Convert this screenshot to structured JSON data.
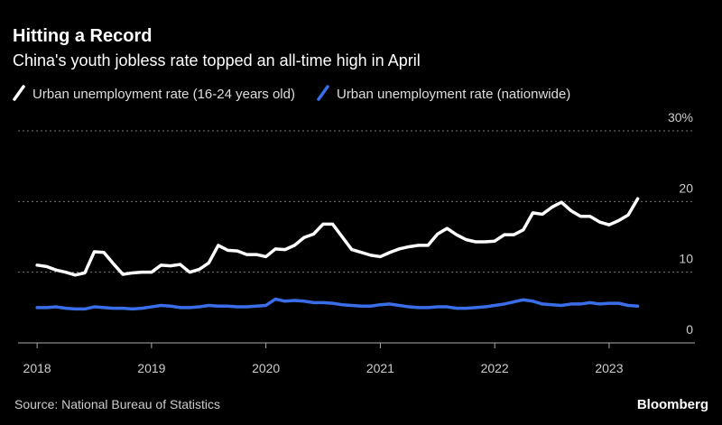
{
  "chart_data": {
    "type": "line",
    "title": "Hitting a Record",
    "subtitle": "China's youth jobless rate topped an all-time high in April",
    "x": [
      "2018-01",
      "2018-02",
      "2018-03",
      "2018-04",
      "2018-05",
      "2018-06",
      "2018-07",
      "2018-08",
      "2018-09",
      "2018-10",
      "2018-11",
      "2018-12",
      "2019-01",
      "2019-02",
      "2019-03",
      "2019-04",
      "2019-05",
      "2019-06",
      "2019-07",
      "2019-08",
      "2019-09",
      "2019-10",
      "2019-11",
      "2019-12",
      "2020-01",
      "2020-02",
      "2020-03",
      "2020-04",
      "2020-05",
      "2020-06",
      "2020-07",
      "2020-08",
      "2020-09",
      "2020-10",
      "2020-11",
      "2020-12",
      "2021-01",
      "2021-02",
      "2021-03",
      "2021-04",
      "2021-05",
      "2021-06",
      "2021-07",
      "2021-08",
      "2021-09",
      "2021-10",
      "2021-11",
      "2021-12",
      "2022-01",
      "2022-02",
      "2022-03",
      "2022-04",
      "2022-05",
      "2022-06",
      "2022-07",
      "2022-08",
      "2022-09",
      "2022-10",
      "2022-11",
      "2022-12",
      "2023-01",
      "2023-02",
      "2023-03",
      "2023-04"
    ],
    "series": [
      {
        "name": "Urban unemployment rate (16-24 years old)",
        "color": "#ffffff",
        "values": [
          11.0,
          10.8,
          10.3,
          10.0,
          9.6,
          9.9,
          12.9,
          12.8,
          11.2,
          9.7,
          9.9,
          10.0,
          10.0,
          11.0,
          10.9,
          11.1,
          10.0,
          10.4,
          11.3,
          13.8,
          13.1,
          13.0,
          12.5,
          12.5,
          12.2,
          13.3,
          13.2,
          13.8,
          14.9,
          15.4,
          16.8,
          16.8,
          15.0,
          13.2,
          12.8,
          12.4,
          12.2,
          12.8,
          13.3,
          13.6,
          13.8,
          13.8,
          15.4,
          16.2,
          15.3,
          14.6,
          14.3,
          14.3,
          14.4,
          15.3,
          15.3,
          16.0,
          18.4,
          18.2,
          19.2,
          19.9,
          18.7,
          17.9,
          17.9,
          17.1,
          16.7,
          17.3,
          18.1,
          20.4
        ]
      },
      {
        "name": "Urban unemployment rate (nationwide)",
        "color": "#3a6ee8",
        "values": [
          5.0,
          5.0,
          5.1,
          4.9,
          4.8,
          4.8,
          5.1,
          5.0,
          4.9,
          4.9,
          4.8,
          4.9,
          5.1,
          5.3,
          5.2,
          5.0,
          5.0,
          5.1,
          5.3,
          5.2,
          5.2,
          5.1,
          5.1,
          5.2,
          5.3,
          6.2,
          5.9,
          6.0,
          5.9,
          5.7,
          5.7,
          5.6,
          5.4,
          5.3,
          5.2,
          5.2,
          5.4,
          5.5,
          5.3,
          5.1,
          5.0,
          5.0,
          5.1,
          5.1,
          4.9,
          4.9,
          5.0,
          5.1,
          5.3,
          5.5,
          5.8,
          6.1,
          5.9,
          5.5,
          5.4,
          5.3,
          5.5,
          5.5,
          5.7,
          5.5,
          5.6,
          5.6,
          5.3,
          5.2
        ]
      }
    ],
    "xlim": [
      "2017-11",
      "2023-10"
    ],
    "xticks": [
      {
        "value": "2018-01",
        "label": "2018"
      },
      {
        "value": "2019-01",
        "label": "2019"
      },
      {
        "value": "2020-01",
        "label": "2020"
      },
      {
        "value": "2021-01",
        "label": "2021"
      },
      {
        "value": "2022-01",
        "label": "2022"
      },
      {
        "value": "2023-01",
        "label": "2023"
      }
    ],
    "ylim": [
      0,
      30
    ],
    "yticks": [
      0,
      10,
      20,
      {
        "value": 30,
        "label": "30%"
      }
    ],
    "grid": true,
    "source": "Source: National Bureau of Statistics",
    "brand": "Bloomberg"
  }
}
